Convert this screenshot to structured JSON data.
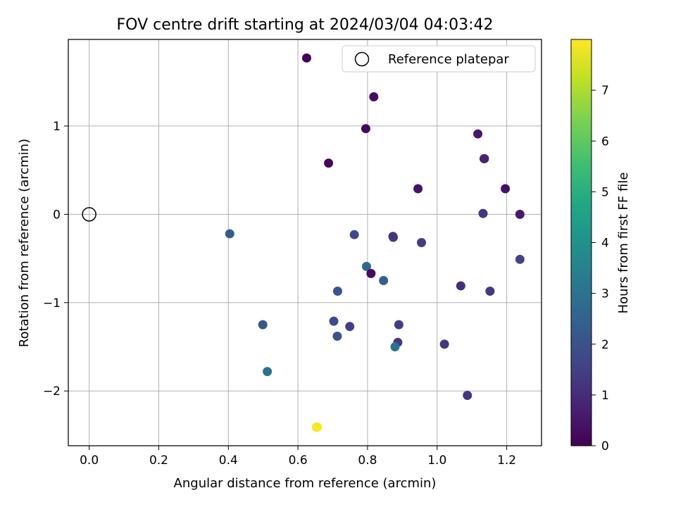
{
  "chart_data": {
    "type": "scatter",
    "title": "FOV centre drift starting at 2024/03/04 04:03:42",
    "xlabel": "Angular distance from reference (arcmin)",
    "ylabel": "Rotation from reference (arcmin)",
    "xlim": [
      -0.06,
      1.3
    ],
    "ylim": [
      -2.62,
      1.98
    ],
    "xticks": [
      0.0,
      0.2,
      0.4,
      0.6,
      0.8,
      1.0,
      1.2
    ],
    "xtick_labels": [
      "0.0",
      "0.2",
      "0.4",
      "0.6",
      "0.8",
      "1.0",
      "1.2"
    ],
    "yticks": [
      -2,
      -1,
      0,
      1
    ],
    "ytick_labels": [
      "−2",
      "−1",
      "0",
      "1"
    ],
    "grid": true,
    "legend": {
      "position": "top-right",
      "entries": [
        "Reference platepar"
      ]
    },
    "colorbar": {
      "label": "Hours from first FF file",
      "colormap": "viridis",
      "range": [
        0,
        8
      ],
      "ticks": [
        0,
        1,
        2,
        3,
        4,
        5,
        6,
        7
      ],
      "tick_labels": [
        "0",
        "1",
        "2",
        "3",
        "4",
        "5",
        "6",
        "7"
      ]
    },
    "reference_point": {
      "x": 0.0,
      "y": 0.0
    },
    "points": [
      {
        "x": 0.625,
        "y": 1.77,
        "hours": 0.05
      },
      {
        "x": 0.818,
        "y": 1.33,
        "hours": 0.3
      },
      {
        "x": 0.795,
        "y": 0.97,
        "hours": 0.2
      },
      {
        "x": 0.688,
        "y": 0.58,
        "hours": 0.15
      },
      {
        "x": 1.117,
        "y": 0.91,
        "hours": 0.5
      },
      {
        "x": 1.135,
        "y": 0.63,
        "hours": 0.7
      },
      {
        "x": 1.136,
        "y": 0.63,
        "hours": 0.75
      },
      {
        "x": 0.945,
        "y": 0.29,
        "hours": 0.4
      },
      {
        "x": 1.196,
        "y": 0.29,
        "hours": 0.35
      },
      {
        "x": 1.132,
        "y": 0.01,
        "hours": 1.3
      },
      {
        "x": 1.238,
        "y": 0.0,
        "hours": 0.55
      },
      {
        "x": 0.404,
        "y": -0.22,
        "hours": 2.3
      },
      {
        "x": 0.762,
        "y": -0.23,
        "hours": 1.7
      },
      {
        "x": 0.873,
        "y": -0.25,
        "hours": 1.1
      },
      {
        "x": 0.874,
        "y": -0.26,
        "hours": 1.2
      },
      {
        "x": 0.955,
        "y": -0.32,
        "hours": 1.4
      },
      {
        "x": 1.238,
        "y": -0.51,
        "hours": 1.6
      },
      {
        "x": 0.797,
        "y": -0.59,
        "hours": 2.7
      },
      {
        "x": 0.81,
        "y": -0.67,
        "hours": 0.25
      },
      {
        "x": 0.846,
        "y": -0.75,
        "hours": 2.4
      },
      {
        "x": 1.068,
        "y": -0.81,
        "hours": 1.0
      },
      {
        "x": 1.152,
        "y": -0.87,
        "hours": 1.35
      },
      {
        "x": 0.714,
        "y": -0.87,
        "hours": 2.1
      },
      {
        "x": 0.703,
        "y": -1.21,
        "hours": 1.8
      },
      {
        "x": 0.499,
        "y": -1.25,
        "hours": 2.2
      },
      {
        "x": 0.749,
        "y": -1.27,
        "hours": 1.5
      },
      {
        "x": 0.89,
        "y": -1.25,
        "hours": 1.45
      },
      {
        "x": 0.713,
        "y": -1.38,
        "hours": 2.0
      },
      {
        "x": 0.887,
        "y": -1.45,
        "hours": 1.3
      },
      {
        "x": 1.021,
        "y": -1.47,
        "hours": 1.25
      },
      {
        "x": 0.879,
        "y": -1.5,
        "hours": 3.0
      },
      {
        "x": 0.512,
        "y": -1.78,
        "hours": 3.0
      },
      {
        "x": 1.087,
        "y": -2.05,
        "hours": 1.2
      },
      {
        "x": 0.653,
        "y": -2.41,
        "hours": 7.9
      },
      {
        "x": 0.656,
        "y": -2.41,
        "hours": 7.95
      }
    ]
  }
}
